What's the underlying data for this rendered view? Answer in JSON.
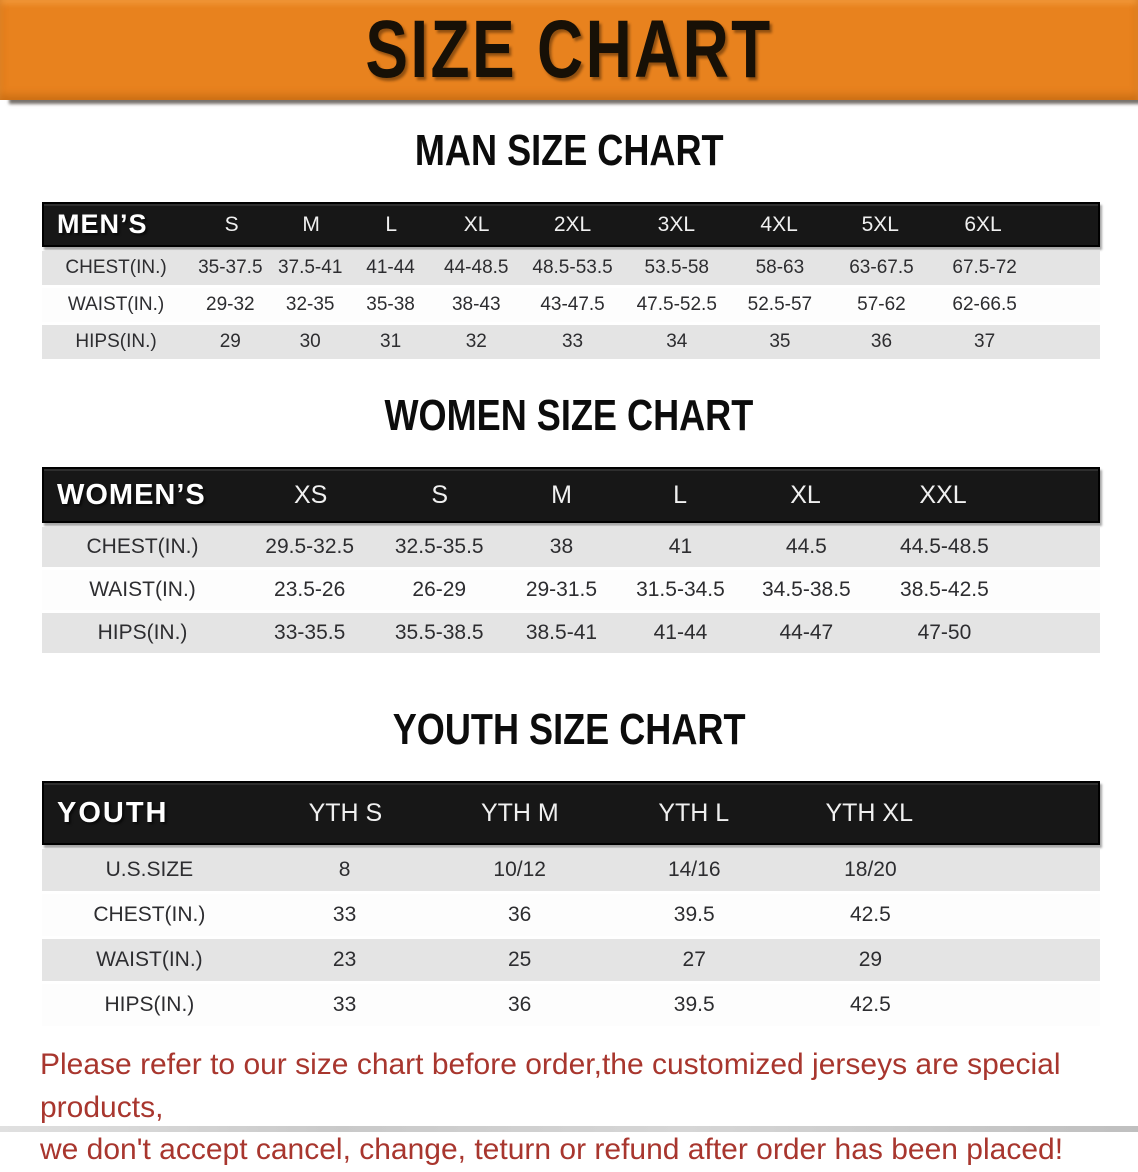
{
  "banner": {
    "title": "SIZE CHART"
  },
  "colors": {
    "banner_bg": "#E8821E",
    "table_header_bg": "#171717",
    "table_header_text": "#F7F7F7",
    "row_shade": "#E4E4E4",
    "row_light": "#FDFDFD",
    "cell_text": "#2D2D30",
    "title_text": "#0C0C0C",
    "notice_text": "#A8362E"
  },
  "sections": [
    {
      "title": "MAN SIZE CHART",
      "header_label": "MEN’S",
      "columns": [
        "S",
        "M",
        "L",
        "XL",
        "2XL",
        "3XL",
        "4XL",
        "5XL",
        "6XL"
      ],
      "rows": [
        {
          "label": "CHEST(IN.)",
          "values": [
            "35-37.5",
            "37.5-41",
            "41-44",
            "44-48.5",
            "48.5-53.5",
            "53.5-58",
            "58-63",
            "63-67.5",
            "67.5-72"
          ]
        },
        {
          "label": "WAIST(IN.)",
          "values": [
            "29-32",
            "32-35",
            "35-38",
            "38-43",
            "43-47.5",
            "47.5-52.5",
            "52.5-57",
            "57-62",
            "62-66.5"
          ]
        },
        {
          "label": "HIPS(IN.)",
          "values": [
            "29",
            "30",
            "31",
            "32",
            "33",
            "34",
            "35",
            "36",
            "37"
          ]
        }
      ]
    },
    {
      "title": "WOMEN SIZE CHART",
      "header_label": "WOMEN’S",
      "columns": [
        "XS",
        "S",
        "M",
        "L",
        "XL",
        "XXL"
      ],
      "rows": [
        {
          "label": "CHEST(IN.)",
          "values": [
            "29.5-32.5",
            "32.5-35.5",
            "38",
            "41",
            "44.5",
            "44.5-48.5"
          ]
        },
        {
          "label": "WAIST(IN.)",
          "values": [
            "23.5-26",
            "26-29",
            "29-31.5",
            "31.5-34.5",
            "34.5-38.5",
            "38.5-42.5"
          ]
        },
        {
          "label": "HIPS(IN.)",
          "values": [
            "33-35.5",
            "35.5-38.5",
            "38.5-41",
            "41-44",
            "44-47",
            "47-50"
          ]
        }
      ]
    },
    {
      "title": "YOUTH SIZE CHART",
      "header_label": "YOUTH",
      "columns": [
        "YTH S",
        "YTH M",
        "YTH L",
        "YTH XL"
      ],
      "rows": [
        {
          "label": "U.S.SIZE",
          "values": [
            "8",
            "10/12",
            "14/16",
            "18/20"
          ]
        },
        {
          "label": "CHEST(IN.)",
          "values": [
            "33",
            "36",
            "39.5",
            "42.5"
          ]
        },
        {
          "label": "WAIST(IN.)",
          "values": [
            "23",
            "25",
            "27",
            "29"
          ]
        },
        {
          "label": "HIPS(IN.)",
          "values": [
            "33",
            "36",
            "39.5",
            "42.5"
          ]
        }
      ]
    }
  ],
  "notice": {
    "line1": "Please refer to our size chart before order,the customized jerseys are special products,",
    "line2": "we don't accept cancel, change, teturn or refund after order has been placed!"
  }
}
